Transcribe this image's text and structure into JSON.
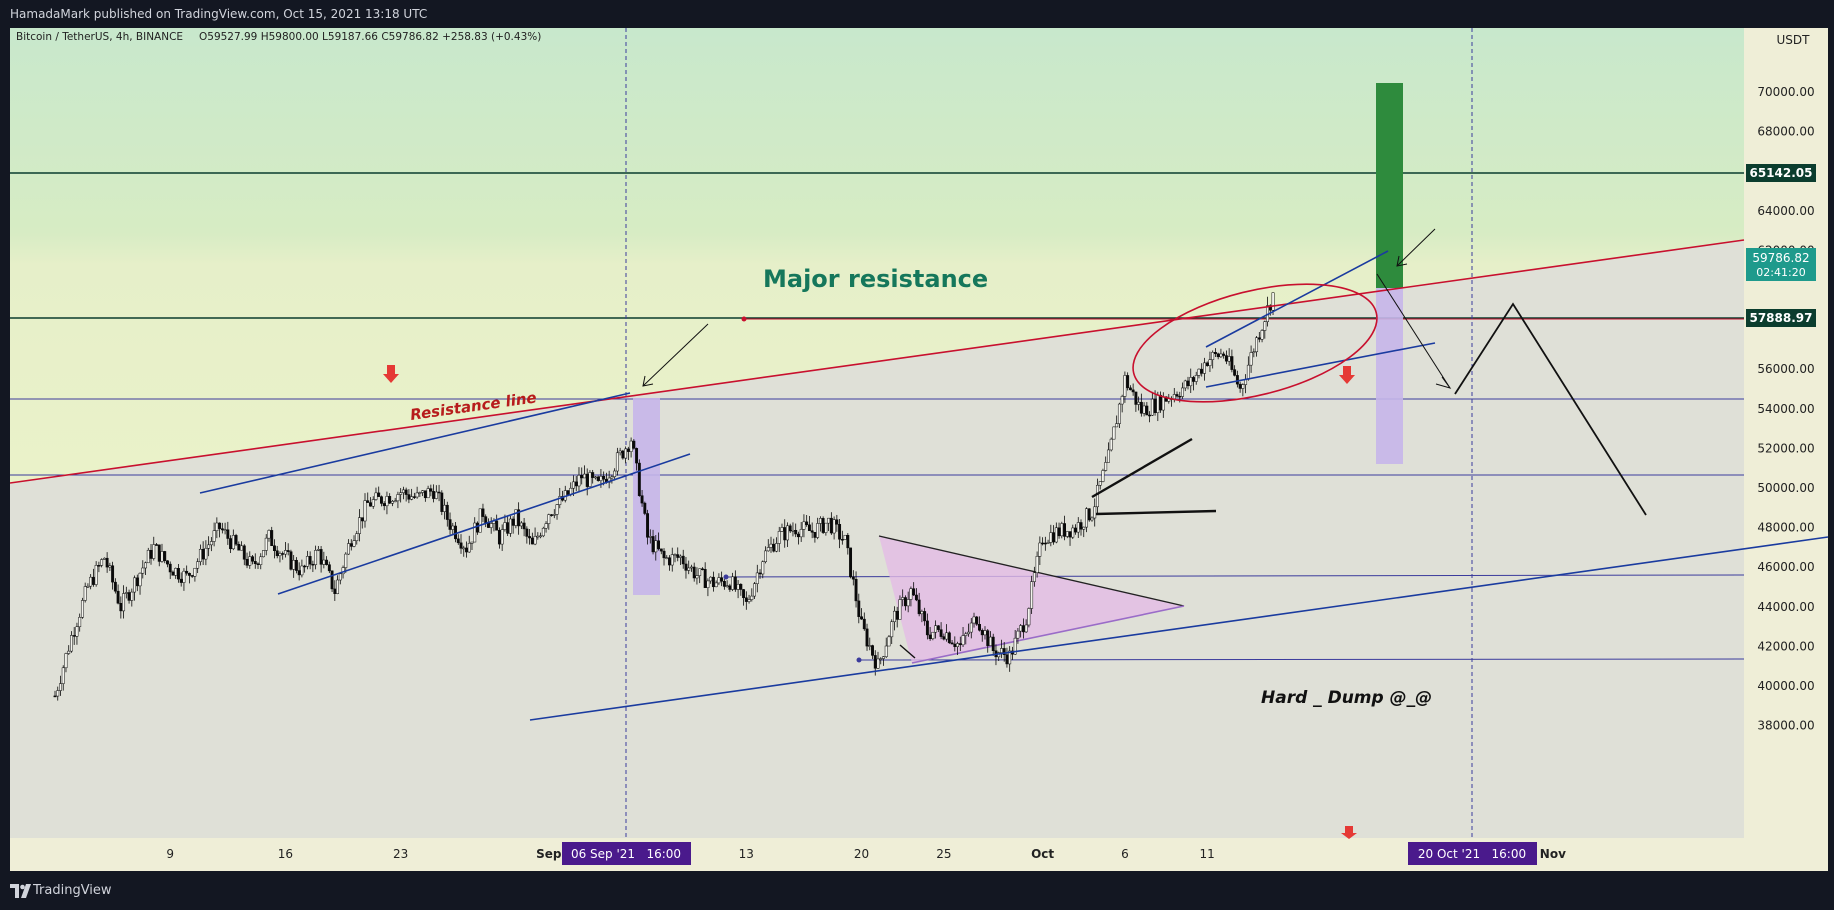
{
  "header": {
    "publish_info": "HamadaMark published on TradingView.com, Oct 15, 2021 13:18 UTC"
  },
  "footer": {
    "brand": "TradingView"
  },
  "colors": {
    "up": "#d1d4dc",
    "down": "#0a0a0a",
    "resistance": "#c8102e",
    "channel": "#1a3b9f",
    "level": "#3b3b9c",
    "target_green": "#2e8b3d",
    "target_purple": "#c6b6ea",
    "price_label_bg": "#0b3d2e",
    "current_label_bg": "#1e9a8c",
    "date_label_bg": "#4a1a8c"
  },
  "chart_data": {
    "type": "candlestick",
    "symbol_info": "Bitcoin / TetherUS, 4h, BINANCE",
    "ohlc_text": "O59527.99 H59800.00 L59187.66 C59786.82 +258.83 (+0.43%)",
    "currency": "USDT",
    "y_ticks": [
      "70000.00",
      "68000.00",
      "66000.00",
      "64000.00",
      "62000.00",
      "56000.00",
      "54000.00",
      "52000.00",
      "50000.00",
      "48000.00",
      "46000.00",
      "44000.00",
      "42000.00",
      "40000.00",
      "38000.00"
    ],
    "x_ticks": [
      "9",
      "16",
      "23",
      "Sep",
      "13",
      "20",
      "25",
      "Oct",
      "6",
      "11",
      "25",
      "Nov"
    ],
    "ylim": [
      36500,
      71500
    ],
    "grid": false,
    "current_price": "59786.82",
    "countdown": "02:41:20",
    "level_labels": [
      "65142.05",
      "57888.97"
    ],
    "date_labels": [
      "06 Sep '21   16:00",
      "20 Oct '21   16:00"
    ],
    "annotations": {
      "major_resistance": "Major resistance",
      "resistance_line": "Resistance line",
      "hard_dump": "Hard _ Dump @_@"
    },
    "price_path": [
      [
        "2021-08-02",
        39500
      ],
      [
        "2021-08-03",
        42500
      ],
      [
        "2021-08-04",
        45000
      ],
      [
        "2021-08-05",
        46500
      ],
      [
        "2021-08-06",
        44000
      ],
      [
        "2021-08-08",
        47000
      ],
      [
        "2021-08-09",
        46000
      ],
      [
        "2021-08-10",
        45500
      ],
      [
        "2021-08-12",
        48000
      ],
      [
        "2021-08-13",
        47000
      ],
      [
        "2021-08-14",
        46000
      ],
      [
        "2021-08-15",
        47500
      ],
      [
        "2021-08-16",
        46500
      ],
      [
        "2021-08-17",
        45800
      ],
      [
        "2021-08-18",
        46800
      ],
      [
        "2021-08-19",
        44800
      ],
      [
        "2021-08-20",
        47500
      ],
      [
        "2021-08-21",
        49200
      ],
      [
        "2021-08-23",
        49800
      ],
      [
        "2021-08-24",
        49500
      ],
      [
        "2021-08-25",
        49900
      ],
      [
        "2021-08-26",
        48200
      ],
      [
        "2021-08-27",
        47000
      ],
      [
        "2021-08-28",
        48800
      ],
      [
        "2021-08-29",
        47500
      ],
      [
        "2021-08-30",
        48500
      ],
      [
        "2021-08-31",
        47000
      ],
      [
        "2021-09-01",
        48800
      ],
      [
        "2021-09-02",
        49500
      ],
      [
        "2021-09-03",
        50600
      ],
      [
        "2021-09-04",
        50100
      ],
      [
        "2021-09-05",
        51200
      ],
      [
        "2021-09-06",
        52500
      ],
      [
        "2021-09-07",
        47500
      ],
      [
        "2021-09-08",
        46400
      ],
      [
        "2021-09-09",
        46500
      ],
      [
        "2021-09-10",
        45600
      ],
      [
        "2021-09-11",
        45200
      ],
      [
        "2021-09-12",
        45300
      ],
      [
        "2021-09-13",
        44100
      ],
      [
        "2021-09-14",
        46500
      ],
      [
        "2021-09-15",
        47600
      ],
      [
        "2021-09-16",
        48000
      ],
      [
        "2021-09-17",
        47800
      ],
      [
        "2021-09-18",
        48300
      ],
      [
        "2021-09-19",
        47300
      ],
      [
        "2021-09-20",
        43000
      ],
      [
        "2021-09-21",
        41000
      ],
      [
        "2021-09-22",
        43500
      ],
      [
        "2021-09-23",
        44800
      ],
      [
        "2021-09-24",
        42700
      ],
      [
        "2021-09-25",
        42800
      ],
      [
        "2021-09-26",
        42000
      ],
      [
        "2021-09-27",
        43500
      ],
      [
        "2021-09-28",
        41800
      ],
      [
        "2021-09-29",
        41500
      ],
      [
        "2021-09-30",
        43500
      ],
      [
        "2021-10-01",
        47500
      ],
      [
        "2021-10-02",
        47800
      ],
      [
        "2021-10-03",
        48000
      ],
      [
        "2021-10-04",
        48800
      ],
      [
        "2021-10-05",
        51500
      ],
      [
        "2021-10-06",
        55500
      ],
      [
        "2021-10-07",
        53900
      ],
      [
        "2021-10-08",
        54300
      ],
      [
        "2021-10-09",
        54800
      ],
      [
        "2021-10-10",
        55300
      ],
      [
        "2021-10-11",
        56500
      ],
      [
        "2021-10-12",
        56800
      ],
      [
        "2021-10-13",
        55000
      ],
      [
        "2021-10-14",
        57500
      ],
      [
        "2021-10-15",
        59786
      ]
    ]
  }
}
